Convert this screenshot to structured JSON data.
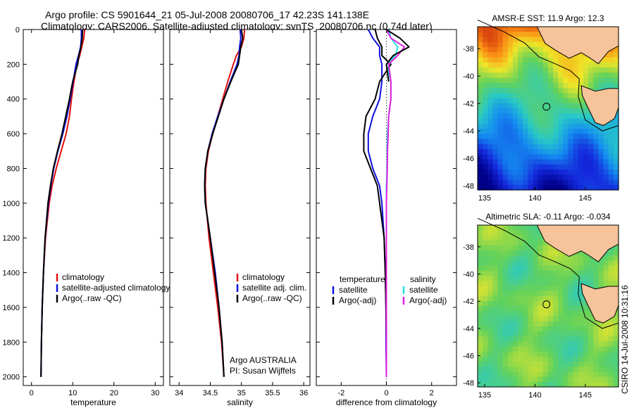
{
  "title_line1": "Argo profile: CS 5901644_21 05-Jul-2008 20080706_17 42.23S 141.138E",
  "title_line2": "Climatology: CARS2006. Satellite-adjusted climatology: synTS_20080706.nc (0.74d later)",
  "side_stamp": "CSIRO 14-Jul-2008 10:31:16",
  "colors": {
    "red": "#e01010",
    "blue": "#1010e0",
    "black": "#000000",
    "cyan": "#22e0e0",
    "magenta": "#e020e0",
    "land": "#f6c39a"
  },
  "chart_data": [
    {
      "type": "line",
      "xlabel": "temperature",
      "ylabel": "",
      "xlim": [
        -2,
        32
      ],
      "ylim": [
        2050,
        0
      ],
      "xticks": [
        0,
        10,
        20,
        30
      ],
      "yticks": [
        0,
        200,
        400,
        600,
        800,
        1000,
        1200,
        1400,
        1600,
        1800,
        2000
      ],
      "legend": [
        "climatology",
        "satellite-adjusted climatology",
        "Argo(..raw -QC)"
      ],
      "series": [
        {
          "name": "climatology",
          "color": "red",
          "depth": [
            0,
            50,
            100,
            150,
            200,
            300,
            400,
            500,
            600,
            700,
            800,
            900,
            1000,
            1200,
            1400,
            1600,
            1800,
            2000
          ],
          "values": [
            12.9,
            12.7,
            12.2,
            11.7,
            11.0,
            10.3,
            9.7,
            9.2,
            8.4,
            7.2,
            6.0,
            5.0,
            4.3,
            3.4,
            2.9,
            2.6,
            2.4,
            2.3
          ]
        },
        {
          "name": "satellite-adjusted climatology",
          "color": "blue",
          "depth": [
            0,
            50,
            100,
            150,
            200,
            300,
            400,
            500,
            600,
            700,
            800,
            900,
            1000,
            1200,
            1400,
            1600,
            1800,
            2000
          ],
          "values": [
            12.1,
            12.1,
            11.9,
            11.4,
            10.8,
            10.1,
            9.4,
            8.6,
            7.6,
            6.4,
            5.4,
            4.7,
            4.1,
            3.3,
            2.9,
            2.6,
            2.4,
            2.3
          ]
        },
        {
          "name": "Argo(..raw -QC)",
          "color": "black",
          "depth": [
            0,
            50,
            100,
            150,
            200,
            300,
            400,
            500,
            600,
            700,
            800,
            900,
            1000,
            1200,
            1400,
            1600,
            1800,
            2000
          ],
          "values": [
            12.4,
            12.3,
            12.0,
            11.5,
            11.2,
            10.0,
            9.2,
            8.3,
            7.4,
            6.3,
            5.3,
            4.6,
            4.0,
            3.3,
            2.9,
            2.6,
            2.4,
            2.3
          ]
        }
      ]
    },
    {
      "type": "line",
      "xlabel": "salinity",
      "ylabel": "",
      "xlim": [
        33.85,
        36.1
      ],
      "ylim": [
        2050,
        0
      ],
      "xticks": [
        34,
        34.5,
        35,
        35.5,
        36
      ],
      "legend": [
        "climatology",
        "satellite adj. clim.",
        "Argo(..raw -QC)"
      ],
      "annotation": [
        "Argo AUSTRALIA",
        "PI: Susan Wijffels"
      ],
      "series": [
        {
          "name": "climatology",
          "color": "red",
          "depth": [
            0,
            50,
            100,
            150,
            200,
            300,
            400,
            500,
            600,
            700,
            800,
            900,
            1000,
            1200,
            1400,
            1600,
            1800,
            2000
          ],
          "values": [
            35.05,
            35.04,
            35.0,
            34.92,
            34.87,
            34.78,
            34.7,
            34.62,
            34.54,
            34.47,
            34.43,
            34.42,
            34.43,
            34.48,
            34.55,
            34.62,
            34.68,
            34.72
          ]
        },
        {
          "name": "satellite adj. clim.",
          "color": "blue",
          "depth": [
            0,
            50,
            100,
            150,
            200,
            300,
            400,
            500,
            600,
            700,
            800,
            900,
            1000,
            1200,
            1400,
            1600,
            1800,
            2000
          ],
          "values": [
            34.98,
            34.99,
            34.97,
            34.96,
            34.93,
            34.82,
            34.72,
            34.62,
            34.53,
            34.46,
            34.42,
            34.41,
            34.42,
            34.5,
            34.58,
            34.64,
            34.69,
            34.72
          ]
        },
        {
          "name": "Argo(..raw -QC)",
          "color": "black",
          "depth": [
            0,
            50,
            100,
            150,
            200,
            300,
            400,
            500,
            600,
            700,
            800,
            900,
            1000,
            1200,
            1400,
            1600,
            1800,
            2000
          ],
          "values": [
            35.0,
            35.02,
            34.99,
            34.97,
            34.95,
            34.83,
            34.72,
            34.63,
            34.54,
            34.46,
            34.42,
            34.41,
            34.42,
            34.5,
            34.57,
            34.64,
            34.69,
            34.72
          ]
        }
      ]
    },
    {
      "type": "line",
      "xlabel": "difference from climatology",
      "ylabel": "",
      "xlim": [
        -3.1,
        3.1
      ],
      "ylim": [
        2050,
        0
      ],
      "xticks": [
        -2,
        0,
        2
      ],
      "legend_left_header": "temperature",
      "legend_right_header": "salinity",
      "legend_left": [
        "satellite",
        "Argo(-adj)"
      ],
      "legend_right": [
        "satellite",
        "Argo(-adj)"
      ],
      "series": [
        {
          "name": "temperature satellite",
          "color": "blue",
          "depth": [
            0,
            50,
            100,
            150,
            200,
            300,
            400,
            500,
            600,
            700,
            800,
            900,
            1000,
            1200,
            1400,
            1600,
            1800,
            2000
          ],
          "values": [
            -0.8,
            -0.6,
            -0.3,
            -0.3,
            -0.2,
            -0.2,
            -0.3,
            -0.6,
            -0.8,
            -0.8,
            -0.6,
            -0.3,
            -0.2,
            -0.1,
            -0.05,
            -0.02,
            -0.02,
            0.0
          ]
        },
        {
          "name": "temperature Argo(-adj)",
          "color": "black",
          "depth": [
            0,
            50,
            100,
            150,
            200,
            300,
            400,
            500,
            600,
            700,
            800,
            900,
            1000,
            1200,
            1400,
            1600,
            1800,
            2000
          ],
          "values": [
            -0.5,
            -0.4,
            -0.2,
            -0.2,
            0.2,
            -0.3,
            -0.5,
            -0.9,
            -1.0,
            -1.0,
            -0.7,
            -0.4,
            -0.3,
            -0.1,
            -0.05,
            -0.02,
            0.0,
            0.0
          ]
        },
        {
          "name": "salinity satellite",
          "color": "cyan",
          "depth": [
            0,
            50,
            100,
            150,
            200,
            300,
            400,
            500,
            600,
            700,
            800,
            900,
            1000,
            1200,
            1400,
            1600,
            1800,
            2000
          ],
          "values": [
            0.1,
            0.2,
            0.5,
            0.4,
            0.0,
            0.2,
            0.2,
            0.1,
            0.05,
            0.03,
            0.03,
            0.0,
            0.0,
            0.0,
            0.0,
            0.0,
            0.0,
            0.0
          ]
        },
        {
          "name": "salinity Argo(-adj)",
          "color": "magenta",
          "depth": [
            0,
            50,
            100,
            150,
            200,
            300,
            400,
            500,
            600,
            700,
            800,
            900,
            1000,
            1200,
            1400,
            1600,
            1800,
            2000
          ],
          "values": [
            0.0,
            0.2,
            0.8,
            0.5,
            0.1,
            0.2,
            0.2,
            0.1,
            0.08,
            0.05,
            0.04,
            0.02,
            0.0,
            0.0,
            0.0,
            0.0,
            0.0,
            0.0
          ]
        },
        {
          "name": "Argo salinity minus climatology",
          "color": "black",
          "depth": [
            0,
            50,
            100,
            150,
            200,
            250,
            300
          ],
          "values": [
            0.0,
            0.6,
            1.0,
            0.3,
            0.0,
            0.05,
            0.1
          ]
        }
      ]
    },
    {
      "type": "heatmap",
      "title": "AMSR-E SST: 11.9 Argo: 12.3",
      "xticks": [
        135,
        140,
        145
      ],
      "yticks": [
        -38,
        -40,
        -42,
        -44,
        -46,
        -48
      ],
      "xlim": [
        134.3,
        148.3
      ],
      "ylim": [
        -48.3,
        -36.4
      ],
      "marker": {
        "lon": 141.138,
        "lat": -42.23
      }
    },
    {
      "type": "heatmap",
      "title": "Altimetric SLA: -0.11 Argo: -0.034",
      "xticks": [
        135,
        140,
        145
      ],
      "yticks": [
        -38,
        -40,
        -42,
        -44,
        -46,
        -48
      ],
      "xlim": [
        134.3,
        148.3
      ],
      "ylim": [
        -48.3,
        -36.4
      ],
      "marker": {
        "lon": 141.138,
        "lat": -42.23
      }
    }
  ]
}
